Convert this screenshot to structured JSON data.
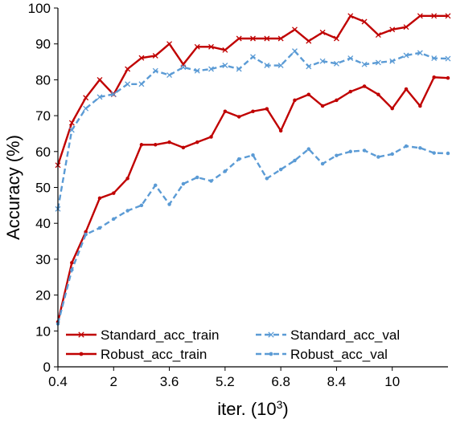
{
  "chart_data": {
    "type": "line",
    "xlabel": "iter. (10",
    "xlabel_sup": "3",
    "xlabel_close": ")",
    "ylabel": "Accuracy (%)",
    "xlim": [
      0.4,
      11.6
    ],
    "ylim": [
      0,
      100
    ],
    "x_ticks": [
      0.4,
      2,
      3.6,
      5.2,
      6.8,
      8.4,
      10
    ],
    "x_tick_labels": [
      "0.4",
      "2",
      "3.6",
      "5.2",
      "6.8",
      "8.4",
      "10"
    ],
    "y_ticks": [
      0,
      10,
      20,
      30,
      40,
      50,
      60,
      70,
      80,
      90,
      100
    ],
    "y_tick_labels": [
      "0",
      "10",
      "20",
      "30",
      "40",
      "50",
      "60",
      "70",
      "80",
      "90",
      "100"
    ],
    "grid": false,
    "legend": {
      "placement": "bottom",
      "columns": 2
    },
    "x": [
      0.4,
      0.8,
      1.2,
      1.6,
      2.0,
      2.4,
      2.8,
      3.2,
      3.6,
      4.0,
      4.4,
      4.8,
      5.2,
      5.6,
      6.0,
      6.4,
      6.8,
      7.2,
      7.6,
      8.0,
      8.4,
      8.8,
      9.2,
      9.6,
      10.0,
      10.4,
      10.8,
      11.2,
      11.6
    ],
    "series": [
      {
        "name": "Standard_acc_train",
        "color": "#c00000",
        "dash": "solid",
        "marker": "x",
        "values": [
          56.2,
          68.0,
          75.0,
          80.0,
          75.9,
          83.0,
          86.1,
          86.7,
          90.0,
          84.3,
          89.2,
          89.2,
          88.3,
          91.5,
          91.5,
          91.5,
          91.5,
          94.0,
          90.8,
          93.2,
          91.5,
          97.8,
          96.2,
          92.5,
          94.0,
          94.7,
          97.8,
          97.8,
          97.8
        ]
      },
      {
        "name": "Robust_acc_train",
        "color": "#c00000",
        "dash": "solid",
        "marker": "dot",
        "values": [
          12.5,
          29.0,
          37.6,
          47.0,
          48.4,
          52.5,
          61.9,
          61.9,
          62.6,
          61.1,
          62.6,
          64.1,
          71.2,
          69.7,
          71.2,
          71.9,
          65.8,
          74.3,
          75.9,
          72.7,
          74.3,
          76.7,
          78.2,
          75.9,
          72.0,
          77.4,
          72.7,
          80.7,
          80.5
        ]
      },
      {
        "name": "Standard_acc_val",
        "color": "#5b9bd5",
        "dash": "dashed",
        "marker": "x",
        "values": [
          44.0,
          66.0,
          72.0,
          75.2,
          76.0,
          78.8,
          78.8,
          82.5,
          81.3,
          83.5,
          82.5,
          83.0,
          84.0,
          83.0,
          86.4,
          84.0,
          84.0,
          88.0,
          83.7,
          85.2,
          84.5,
          86.0,
          84.3,
          84.8,
          85.2,
          86.8,
          87.5,
          86.0,
          85.9
        ]
      },
      {
        "name": "Robust_acc_val",
        "color": "#5b9bd5",
        "dash": "dashed",
        "marker": "dot",
        "values": [
          12.0,
          27.0,
          36.9,
          38.7,
          41.2,
          43.5,
          45.0,
          50.6,
          45.3,
          51.0,
          52.8,
          51.8,
          54.5,
          57.9,
          59.0,
          52.5,
          55.0,
          57.5,
          60.7,
          56.6,
          58.9,
          60.0,
          60.3,
          58.5,
          59.3,
          61.5,
          61.0,
          59.6,
          59.5
        ]
      }
    ]
  }
}
